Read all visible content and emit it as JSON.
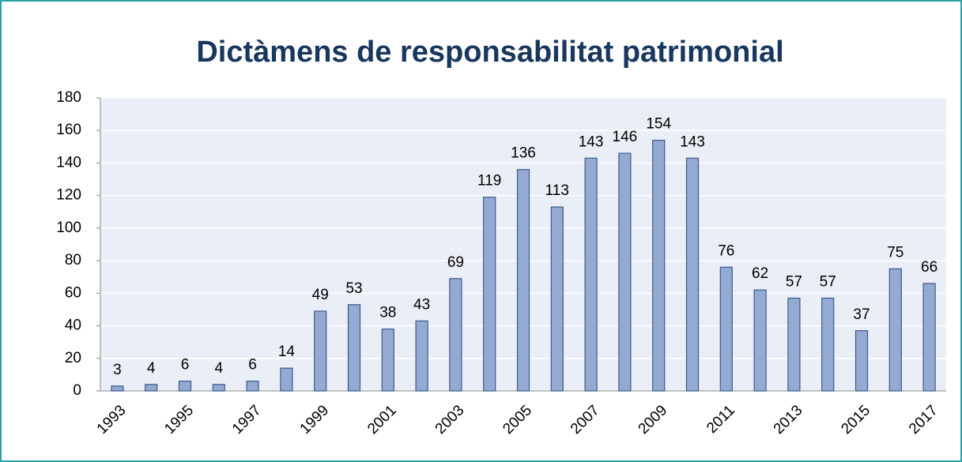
{
  "chart_data": {
    "type": "bar",
    "title": "Dictàmens de responsabilitat patrimonial",
    "categories": [
      "1993",
      null,
      "1995",
      null,
      "1997",
      null,
      "1999",
      null,
      "2001",
      null,
      "2003",
      null,
      "2005",
      null,
      "2007",
      null,
      "2009",
      null,
      "2011",
      null,
      "2013",
      null,
      "2015",
      null,
      "2017"
    ],
    "values": [
      3,
      4,
      6,
      4,
      6,
      14,
      49,
      53,
      38,
      43,
      69,
      119,
      136,
      113,
      143,
      146,
      154,
      143,
      76,
      62,
      57,
      57,
      37,
      75,
      66
    ],
    "color": "#95aad3",
    "ylim": [
      0,
      180
    ],
    "yticks": [
      0,
      20,
      40,
      60,
      80,
      100,
      120,
      140,
      160,
      180
    ],
    "grid": true
  }
}
